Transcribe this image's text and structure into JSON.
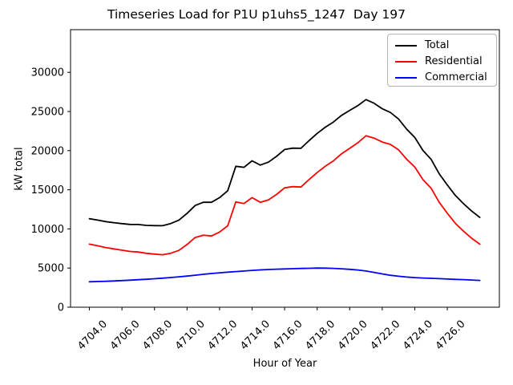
{
  "chart_data": {
    "type": "line",
    "title": "Timeseries Load for P1U p1uhs5_1247  Day 197",
    "xlabel": "Hour of Year",
    "ylabel": "kW total",
    "grid": false,
    "legend_position": "upper right",
    "xlim": [
      4702.84,
      4729.2
    ],
    "ylim": [
      0,
      35450
    ],
    "xtick_labels": [
      "4704.0",
      "4706.0",
      "4708.0",
      "4710.0",
      "4712.0",
      "4714.0",
      "4716.0",
      "4718.0",
      "4720.0",
      "4722.0",
      "4724.0",
      "4726.0"
    ],
    "xtick_values": [
      4704,
      4706,
      4708,
      4710,
      4712,
      4714,
      4716,
      4718,
      4720,
      4722,
      4724,
      4726
    ],
    "ytick_labels": [
      "0",
      "5000",
      "10000",
      "15000",
      "20000",
      "25000",
      "30000"
    ],
    "ytick_values": [
      0,
      5000,
      10000,
      15000,
      20000,
      25000,
      30000
    ],
    "x": [
      4704.0,
      4704.5,
      4705.0,
      4705.5,
      4706.0,
      4706.5,
      4707.0,
      4707.5,
      4708.0,
      4708.5,
      4709.0,
      4709.5,
      4710.0,
      4710.5,
      4711.0,
      4711.5,
      4712.0,
      4712.5,
      4713.0,
      4713.5,
      4714.0,
      4714.5,
      4715.0,
      4715.5,
      4716.0,
      4716.5,
      4717.0,
      4717.5,
      4718.0,
      4718.5,
      4719.0,
      4719.5,
      4720.0,
      4720.5,
      4721.0,
      4721.5,
      4722.0,
      4722.5,
      4723.0,
      4723.5,
      4724.0,
      4724.5,
      4725.0,
      4725.5,
      4726.0,
      4726.5,
      4727.0,
      4727.5,
      4728.0
    ],
    "series": [
      {
        "name": "Total",
        "color": "#000000",
        "values": [
          11300,
          11130,
          10930,
          10800,
          10680,
          10570,
          10560,
          10450,
          10420,
          10410,
          10690,
          11130,
          11980,
          12990,
          13400,
          13400,
          14000,
          14880,
          18000,
          17870,
          18700,
          18160,
          18520,
          19260,
          20140,
          20320,
          20300,
          21270,
          22200,
          22990,
          23660,
          24510,
          25140,
          25750,
          26520,
          26050,
          25350,
          24880,
          24050,
          22750,
          21680,
          20030,
          18890,
          17050,
          15600,
          14260,
          13220,
          12270,
          11470
        ]
      },
      {
        "name": "Residential",
        "color": "#ff0000",
        "values": [
          8050,
          7850,
          7620,
          7450,
          7280,
          7120,
          7050,
          6880,
          6780,
          6700,
          6900,
          7250,
          8000,
          8900,
          9200,
          9100,
          9600,
          10400,
          13450,
          13250,
          14000,
          13400,
          13700,
          14400,
          15250,
          15400,
          15350,
          16300,
          17200,
          18000,
          18700,
          19600,
          20300,
          21000,
          21900,
          21600,
          21100,
          20800,
          20100,
          18900,
          17900,
          16300,
          15200,
          13400,
          12000,
          10700,
          9700,
          8800,
          8050
        ]
      },
      {
        "name": "Commercial",
        "color": "#0000ff",
        "values": [
          3250,
          3280,
          3310,
          3350,
          3400,
          3450,
          3510,
          3570,
          3640,
          3710,
          3790,
          3880,
          3980,
          4090,
          4200,
          4300,
          4400,
          4480,
          4550,
          4620,
          4700,
          4760,
          4820,
          4860,
          4890,
          4920,
          4950,
          4970,
          5000,
          4990,
          4960,
          4910,
          4840,
          4750,
          4620,
          4450,
          4250,
          4080,
          3950,
          3850,
          3780,
          3730,
          3690,
          3650,
          3600,
          3560,
          3520,
          3470,
          3420
        ]
      }
    ]
  }
}
